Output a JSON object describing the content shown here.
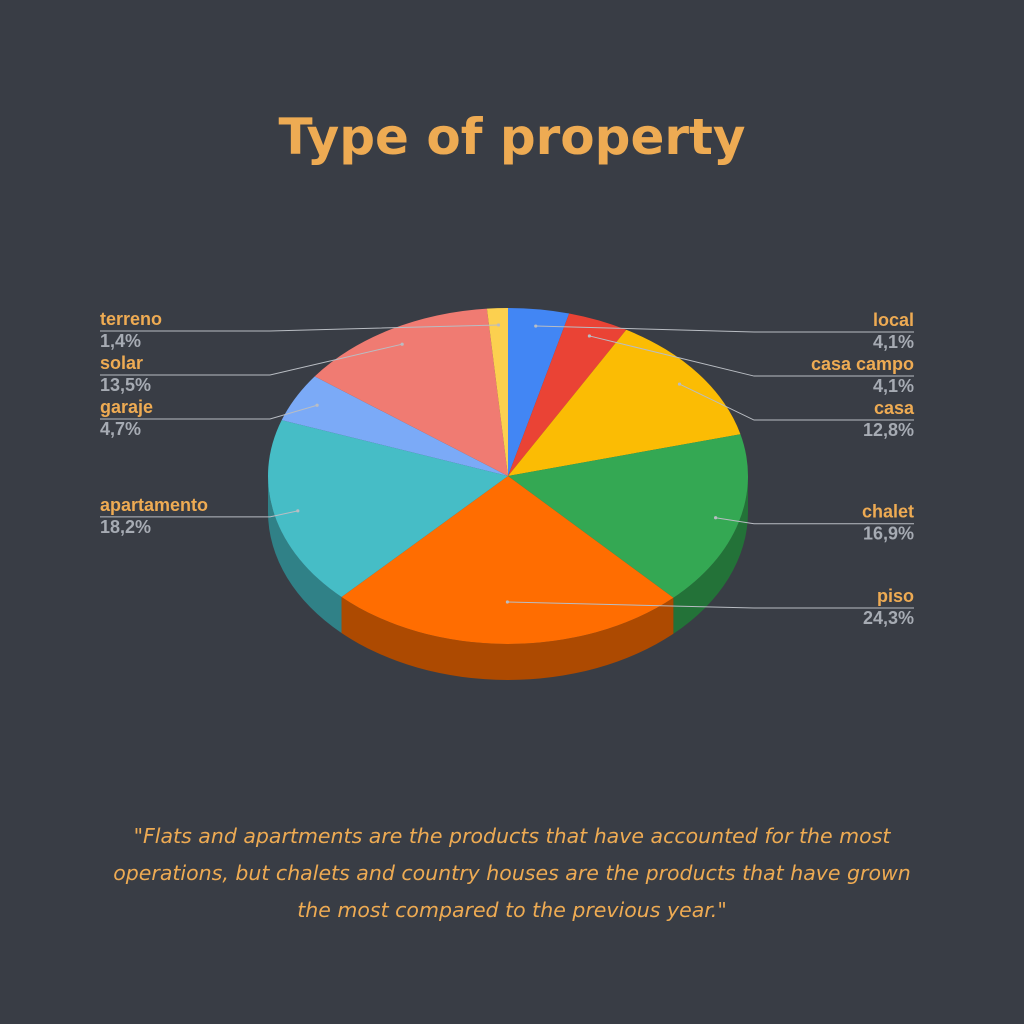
{
  "title": "Type of property",
  "caption": "\"Flats and apartments are the products that have accounted for the most operations, but chalets and country houses are the products that have grown the most compared to the previous year.\"",
  "colors": {
    "background": "#393d45",
    "title": "#eeab53",
    "label_name": "#eeab53",
    "label_value": "#a6abb3",
    "leader_line": "#b9bdc3"
  },
  "chart_data": {
    "type": "pie",
    "style": "3d",
    "title": "Type of property",
    "slices": [
      {
        "label": "local",
        "value": 4.1,
        "text": "4,1%",
        "color": "#4286f4",
        "side": "right"
      },
      {
        "label": "casa campo",
        "value": 4.1,
        "text": "4,1%",
        "color": "#ea4335",
        "side": "right"
      },
      {
        "label": "casa",
        "value": 12.8,
        "text": "12,8%",
        "color": "#fbbc04",
        "side": "right"
      },
      {
        "label": "chalet",
        "value": 16.9,
        "text": "16,9%",
        "color": "#34a853",
        "side": "right"
      },
      {
        "label": "piso",
        "value": 24.3,
        "text": "24,3%",
        "color": "#ff6d01",
        "side": "right"
      },
      {
        "label": "apartamento",
        "value": 18.2,
        "text": "18,2%",
        "color": "#46bdc6",
        "side": "left"
      },
      {
        "label": "garaje",
        "value": 4.7,
        "text": "4,7%",
        "color": "#7baaf7",
        "side": "left"
      },
      {
        "label": "solar",
        "value": 13.5,
        "text": "13,5%",
        "color": "#f07b72",
        "side": "left"
      },
      {
        "label": "terreno",
        "value": 1.4,
        "text": "1,4%",
        "color": "#fcd04f",
        "side": "left"
      }
    ]
  }
}
